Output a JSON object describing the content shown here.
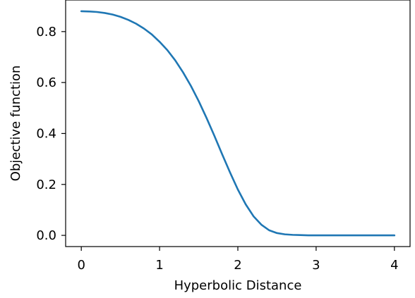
{
  "chart_data": {
    "type": "line",
    "title": "",
    "xlabel": "Hyperbolic Distance",
    "ylabel": "Objective function",
    "xlim": [
      -0.2,
      4.2
    ],
    "ylim": [
      -0.044,
      0.924
    ],
    "xticks": [
      0,
      1,
      2,
      3,
      4
    ],
    "xtick_labels": [
      "0",
      "1",
      "2",
      "3",
      "4"
    ],
    "yticks": [
      0.0,
      0.2,
      0.4,
      0.6,
      0.8
    ],
    "ytick_labels": [
      "0.0",
      "0.2",
      "0.4",
      "0.6",
      "0.8"
    ],
    "grid": false,
    "legend": false,
    "series": [
      {
        "color": "#1f77b4",
        "x": [
          0.0,
          0.1,
          0.2,
          0.3,
          0.4,
          0.5,
          0.6,
          0.7,
          0.8,
          0.9,
          1.0,
          1.1,
          1.2,
          1.3,
          1.4,
          1.5,
          1.6,
          1.7,
          1.8,
          1.9,
          2.0,
          2.1,
          2.2,
          2.3,
          2.4,
          2.5,
          2.6,
          2.7,
          2.8,
          2.9,
          3.0,
          3.2,
          3.4,
          3.6,
          3.8,
          4.0
        ],
        "y": [
          0.88,
          0.879,
          0.877,
          0.873,
          0.867,
          0.858,
          0.846,
          0.831,
          0.812,
          0.789,
          0.76,
          0.727,
          0.687,
          0.64,
          0.587,
          0.527,
          0.461,
          0.391,
          0.318,
          0.247,
          0.18,
          0.122,
          0.075,
          0.042,
          0.02,
          0.009,
          0.004,
          0.002,
          0.001,
          0.0,
          0.0,
          0.0,
          0.0,
          0.0,
          0.0,
          0.0
        ]
      }
    ]
  }
}
